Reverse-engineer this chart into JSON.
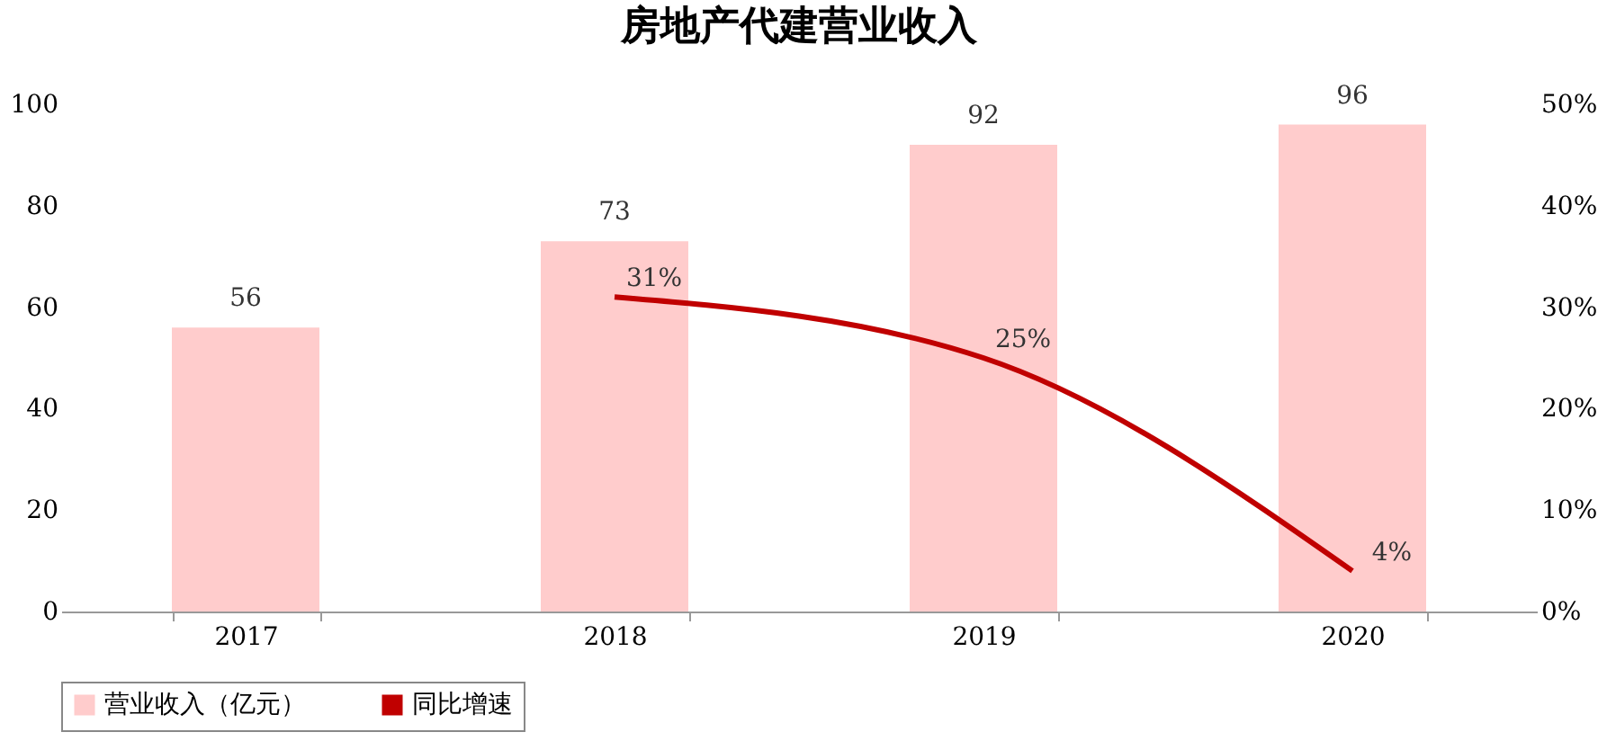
{
  "chart_data": {
    "type": "bar",
    "title": "房地产代建营业收入",
    "categories": [
      "2017",
      "2018",
      "2019",
      "2020"
    ],
    "series": [
      {
        "name": "营业收入（亿元）",
        "color": "#ffcccc",
        "values": [
          56,
          73,
          92,
          96
        ],
        "value_labels": [
          "56",
          "73",
          "92",
          "96"
        ]
      },
      {
        "name": "同比增速",
        "type": "line",
        "axis": "y2",
        "color": "#c00000",
        "values": [
          null,
          31,
          25,
          4
        ],
        "value_labels": [
          null,
          "31%",
          "25%",
          "4%"
        ]
      }
    ],
    "ylim": [
      0,
      100
    ],
    "yticks": [
      0,
      20,
      40,
      60,
      80,
      100
    ],
    "y2lim": [
      0,
      50
    ],
    "y2ticks": [
      {
        "value": 0,
        "label": "0%"
      },
      {
        "value": 10,
        "label": "10%"
      },
      {
        "value": 20,
        "label": "20%"
      },
      {
        "value": 30,
        "label": "30%"
      },
      {
        "value": 40,
        "label": "40%"
      },
      {
        "value": 50,
        "label": "50%"
      }
    ],
    "grid": false,
    "legend": "bottom"
  }
}
